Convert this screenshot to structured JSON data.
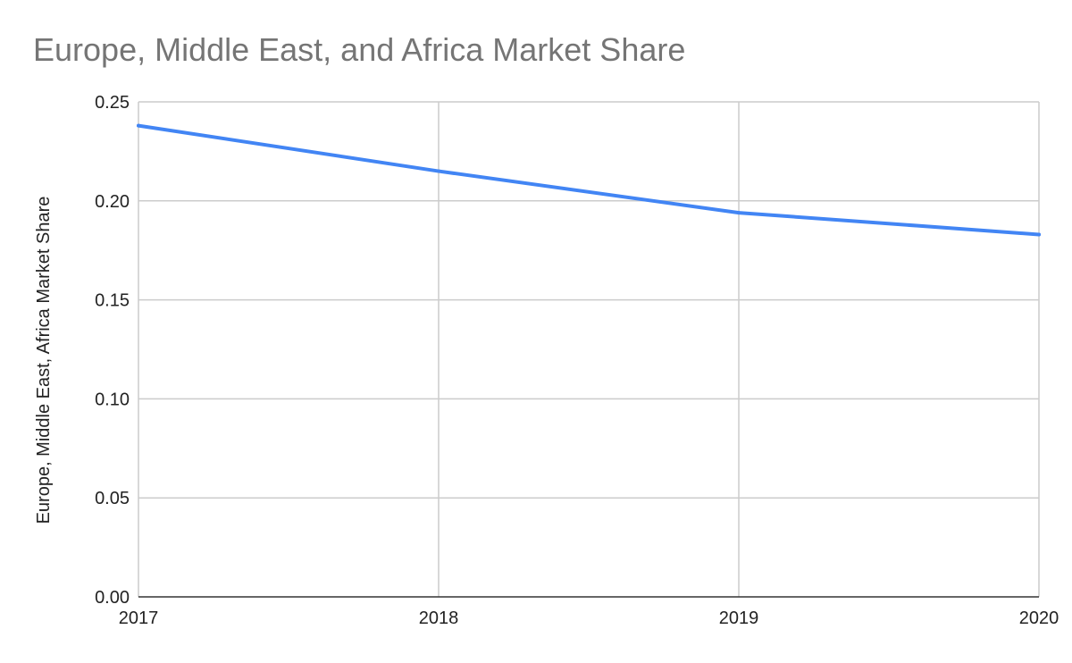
{
  "chart_data": {
    "type": "line",
    "title": "Europe, Middle East, and Africa Market Share",
    "xlabel": "",
    "ylabel": "Europe, Middle East, Africa Market Share",
    "x": [
      "2017",
      "2018",
      "2019",
      "2020"
    ],
    "series": [
      {
        "values": [
          0.238,
          0.215,
          0.194,
          0.183
        ],
        "color": "#4285f4"
      }
    ],
    "ylim": [
      0,
      0.25
    ],
    "y_ticks": [
      "0.00",
      "0.05",
      "0.10",
      "0.15",
      "0.20",
      "0.25"
    ],
    "grid": true,
    "legend": "none"
  }
}
